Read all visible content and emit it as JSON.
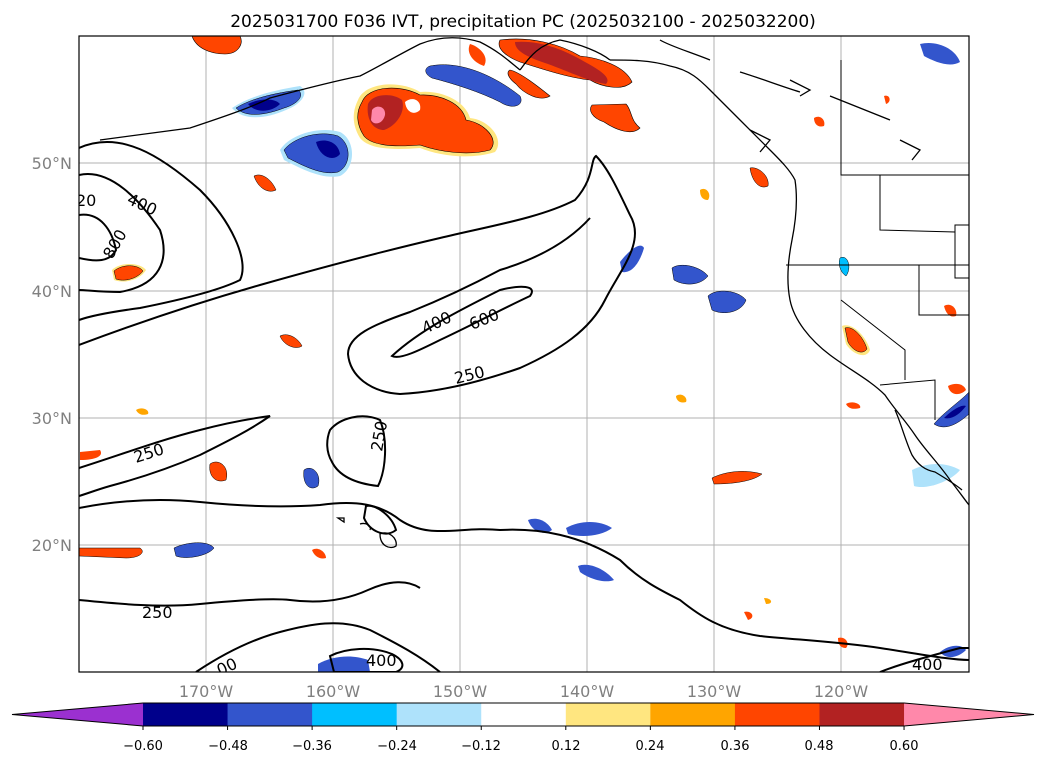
{
  "title": "2025031700 F036 IVT, precipitation PC (2025032100 - 2025032200)",
  "lat_labels": [
    "50°N",
    "40°N",
    "30°N",
    "20°N"
  ],
  "lon_labels": [
    "170°W",
    "160°W",
    "150°W",
    "140°W",
    "130°W",
    "120°W"
  ],
  "ivt_contour_labels": [
    "400",
    "800",
    "20",
    "400",
    "600",
    "250",
    "250",
    "250",
    "250",
    "00",
    "400",
    "400"
  ],
  "colorbar": {
    "ticks": [
      "−0.60",
      "−0.48",
      "−0.36",
      "−0.24",
      "−0.12",
      "0.12",
      "0.24",
      "0.36",
      "0.48",
      "0.60"
    ],
    "colors": [
      "#9b30d0",
      "#00008b",
      "#3355cc",
      "#00bfff",
      "#aee2fb",
      "#ffffff",
      "#ffe680",
      "#ffa500",
      "#ff4500",
      "#b22222",
      "#ff88aa"
    ]
  },
  "colors": {
    "negative_strong": "#00008b",
    "negative_mid": "#3355cc",
    "negative_light": "#00bfff",
    "negative_faint": "#aee2fb",
    "positive_faint": "#ffe680",
    "positive_light": "#ffa500",
    "positive_mid": "#ff4500",
    "positive_strong": "#b22222",
    "positive_max": "#ff88aa"
  }
}
